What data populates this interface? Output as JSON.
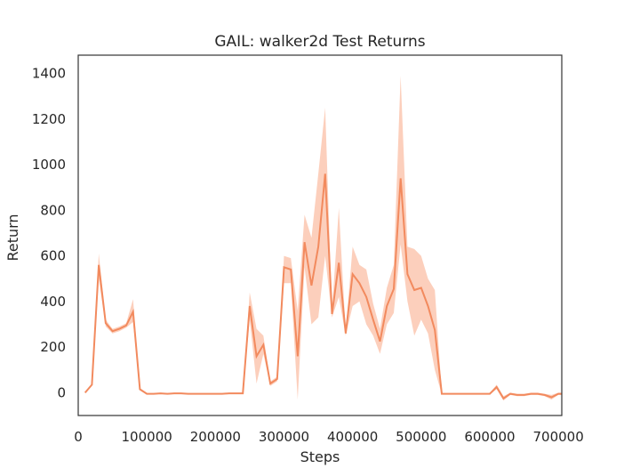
{
  "chart_data": {
    "type": "line",
    "title": "GAIL: walker2d Test Returns",
    "xlabel": "Steps",
    "ylabel": "Return",
    "xlim": [
      0,
      705000
    ],
    "ylim": [
      -100,
      1480
    ],
    "xticks": [
      0,
      100000,
      200000,
      300000,
      400000,
      500000,
      600000,
      700000
    ],
    "yticks": [
      0,
      200,
      400,
      600,
      800,
      1000,
      1200,
      1400
    ],
    "grid": false,
    "legend": "none",
    "colors": {
      "line": "#f28a5e",
      "band": "#fcc7b0",
      "frame": "#333333"
    },
    "series": [
      {
        "x": [
          10000,
          20000,
          30000,
          40000,
          50000,
          60000,
          70000,
          80000,
          90000,
          100000,
          110000,
          120000,
          130000,
          140000,
          150000,
          160000,
          170000,
          180000,
          190000,
          200000,
          210000,
          220000,
          230000,
          240000,
          250000,
          260000,
          270000,
          280000,
          290000,
          300000,
          310000,
          320000,
          330000,
          340000,
          350000,
          360000,
          370000,
          380000,
          390000,
          400000,
          410000,
          420000,
          430000,
          440000,
          450000,
          460000,
          470000,
          480000,
          490000,
          500000,
          510000,
          520000,
          530000,
          540000,
          550000,
          560000,
          570000,
          580000,
          590000,
          600000,
          610000,
          620000,
          630000,
          640000,
          650000,
          660000,
          670000,
          680000,
          690000,
          700000,
          705000
        ],
        "y": [
          0,
          35,
          560,
          305,
          270,
          280,
          295,
          355,
          15,
          -5,
          -5,
          -3,
          -5,
          -3,
          -3,
          -5,
          -5,
          -5,
          -5,
          -5,
          -5,
          -3,
          -3,
          -3,
          380,
          160,
          210,
          40,
          60,
          550,
          540,
          160,
          660,
          470,
          640,
          960,
          345,
          570,
          260,
          520,
          480,
          420,
          320,
          225,
          380,
          455,
          940,
          520,
          450,
          460,
          380,
          275,
          -5,
          -5,
          -5,
          -5,
          -5,
          -5,
          -5,
          -5,
          25,
          -25,
          -5,
          -10,
          -10,
          -5,
          -5,
          -10,
          -20,
          -5,
          -5
        ],
        "lower": [
          0,
          35,
          500,
          290,
          260,
          270,
          285,
          310,
          10,
          -8,
          -8,
          -6,
          -8,
          -6,
          -6,
          -8,
          -8,
          -8,
          -8,
          -8,
          -8,
          -6,
          -6,
          -6,
          320,
          40,
          170,
          30,
          50,
          480,
          480,
          -30,
          550,
          300,
          330,
          600,
          330,
          420,
          250,
          380,
          400,
          300,
          250,
          170,
          300,
          350,
          650,
          400,
          250,
          320,
          260,
          100,
          -8,
          -8,
          -8,
          -8,
          -8,
          -8,
          -8,
          -8,
          15,
          -35,
          -10,
          -15,
          -15,
          -10,
          -10,
          -15,
          -30,
          -10,
          -10
        ],
        "upper": [
          0,
          35,
          610,
          320,
          280,
          290,
          305,
          410,
          20,
          -2,
          -2,
          0,
          -2,
          0,
          0,
          -2,
          -2,
          -2,
          -2,
          -2,
          -2,
          0,
          0,
          0,
          440,
          280,
          250,
          50,
          70,
          600,
          590,
          360,
          780,
          680,
          960,
          1250,
          360,
          810,
          270,
          640,
          560,
          540,
          390,
          280,
          460,
          560,
          1390,
          640,
          630,
          600,
          500,
          450,
          -2,
          -2,
          -2,
          -2,
          -2,
          -2,
          -2,
          -2,
          35,
          -15,
          0,
          -5,
          -5,
          0,
          0,
          -5,
          -10,
          0,
          0
        ]
      }
    ]
  }
}
